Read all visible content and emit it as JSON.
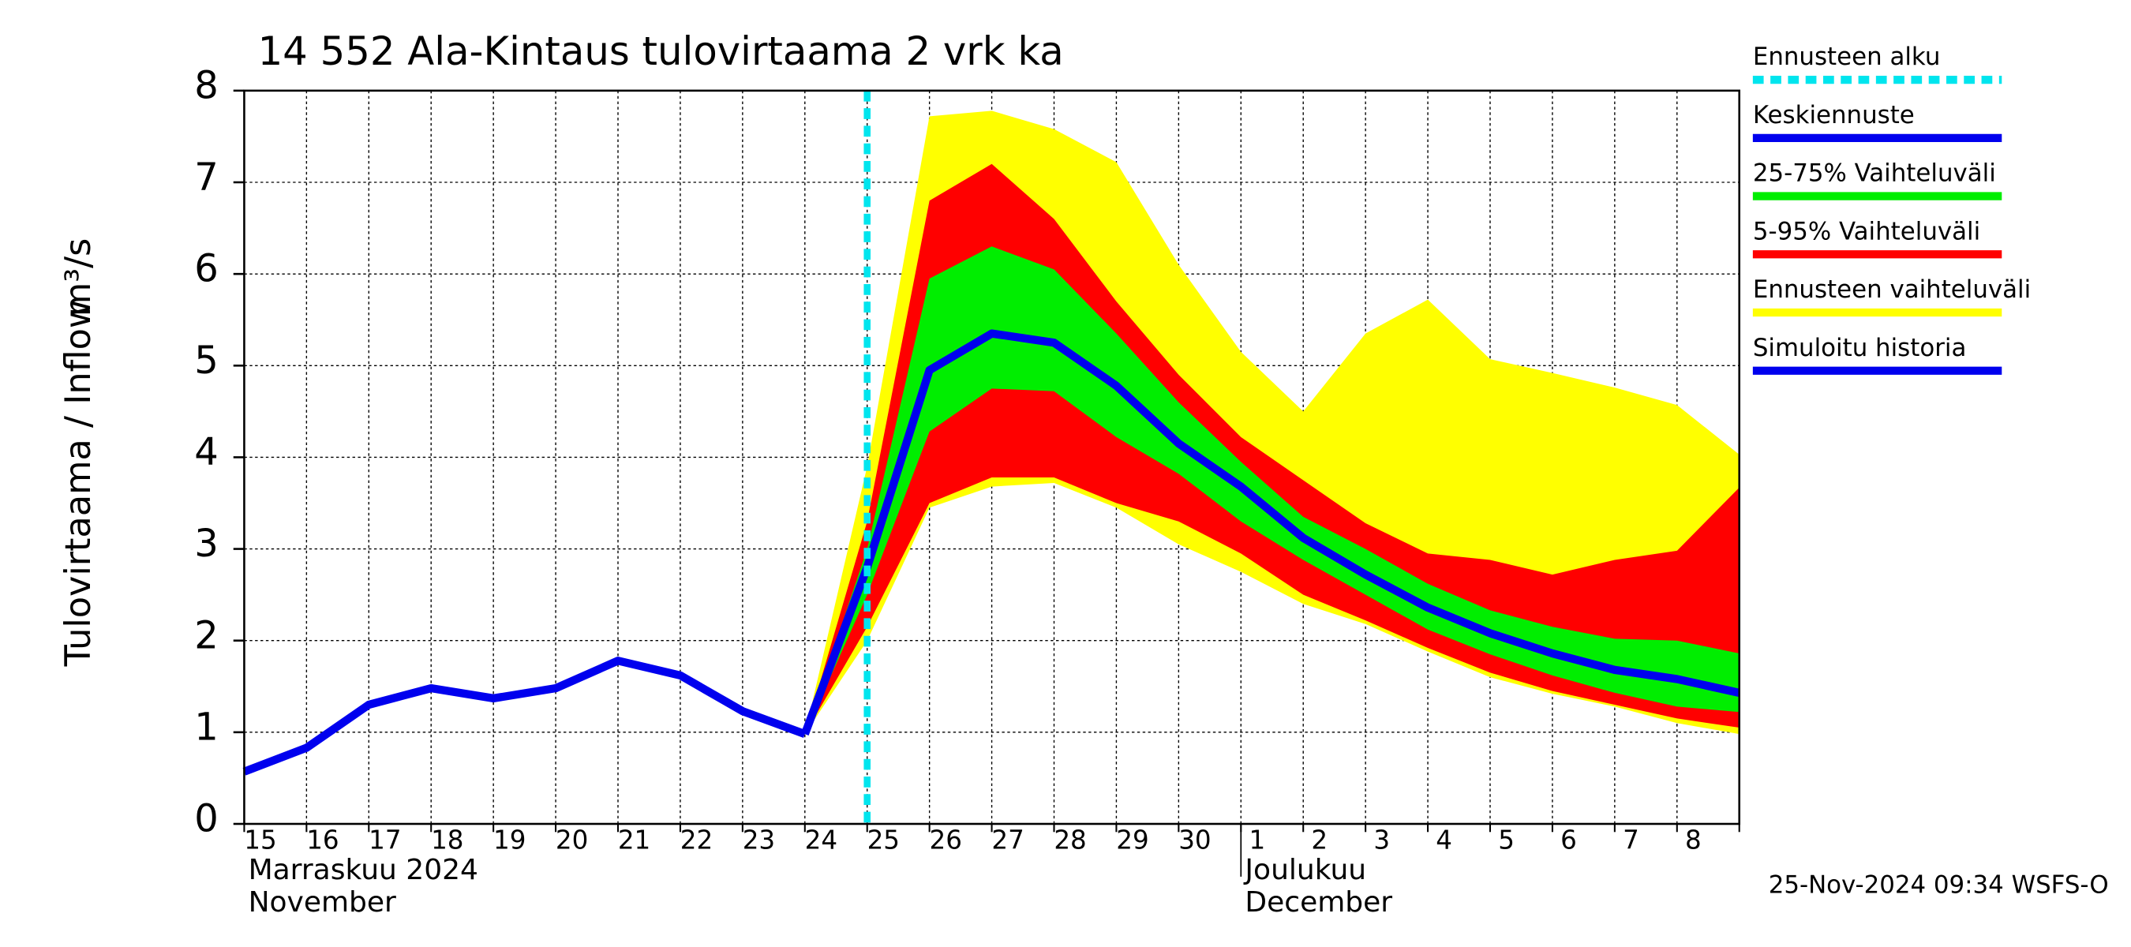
{
  "chart_data": {
    "type": "line",
    "title": "14 552 Ala-Kintaus tulovirtaama 2 vrk ka",
    "y_label": "Tulovirtaama / Inflow",
    "y_unit": "m³/s",
    "categories": [
      "15",
      "16",
      "17",
      "18",
      "19",
      "20",
      "21",
      "22",
      "23",
      "24",
      "25",
      "26",
      "27",
      "28",
      "29",
      "30",
      "1",
      "2",
      "3",
      "4",
      "5",
      "6",
      "7",
      "8",
      null
    ],
    "months": [
      {
        "label": "Marraskuu 2024",
        "label2": "November",
        "start": 0
      },
      {
        "label": "Joulukuu",
        "label2": "December",
        "start": 16
      }
    ],
    "ylim": [
      0,
      8
    ],
    "yticks": [
      0,
      1,
      2,
      3,
      4,
      5,
      6,
      7,
      8
    ],
    "grid": true,
    "forecast_start": 10,
    "bands": [
      {
        "name": "Ennusteen vaihteluväli",
        "color": "#ffff00",
        "upper": [
          null,
          null,
          null,
          null,
          null,
          null,
          null,
          null,
          null,
          0.98,
          3.9,
          7.72,
          7.78,
          7.58,
          7.22,
          6.1,
          5.15,
          4.5,
          5.35,
          5.72,
          5.07,
          4.92,
          4.76,
          4.57,
          4.03
        ],
        "lower": [
          null,
          null,
          null,
          null,
          null,
          null,
          null,
          null,
          null,
          0.98,
          2.0,
          3.45,
          3.68,
          3.72,
          3.45,
          3.05,
          2.75,
          2.4,
          2.18,
          1.88,
          1.6,
          1.42,
          1.28,
          1.1,
          0.98
        ]
      },
      {
        "name": "5-95% Vaihteluväli",
        "color": "#ff0000",
        "upper": [
          null,
          null,
          null,
          null,
          null,
          null,
          null,
          null,
          null,
          0.98,
          3.3,
          6.8,
          7.2,
          6.6,
          5.7,
          4.9,
          4.22,
          3.75,
          3.28,
          2.95,
          2.88,
          2.72,
          2.88,
          2.98,
          3.67
        ],
        "lower": [
          null,
          null,
          null,
          null,
          null,
          null,
          null,
          null,
          null,
          0.98,
          2.15,
          3.5,
          3.78,
          3.78,
          3.5,
          3.3,
          2.95,
          2.5,
          2.22,
          1.92,
          1.65,
          1.45,
          1.3,
          1.15,
          1.05
        ]
      },
      {
        "name": "25-75% Vaihteluväli",
        "color": "#00ee00",
        "upper": [
          null,
          null,
          null,
          null,
          null,
          null,
          null,
          null,
          null,
          0.98,
          3.0,
          5.95,
          6.3,
          6.05,
          5.35,
          4.6,
          3.95,
          3.35,
          3.0,
          2.62,
          2.33,
          2.15,
          2.02,
          2.0,
          1.86
        ],
        "lower": [
          null,
          null,
          null,
          null,
          null,
          null,
          null,
          null,
          null,
          0.98,
          2.5,
          4.28,
          4.75,
          4.72,
          4.22,
          3.82,
          3.3,
          2.88,
          2.5,
          2.12,
          1.85,
          1.62,
          1.43,
          1.28,
          1.22
        ]
      }
    ],
    "series": [
      {
        "name": "Keskiennuste",
        "color": "#0000ee",
        "values": [
          null,
          null,
          null,
          null,
          null,
          null,
          null,
          null,
          null,
          0.98,
          2.8,
          4.95,
          5.35,
          5.25,
          4.78,
          4.15,
          3.68,
          3.12,
          2.72,
          2.36,
          2.08,
          1.86,
          1.68,
          1.58,
          1.43
        ]
      },
      {
        "name": "Simuloitu historia",
        "color": "#0000ee",
        "values": [
          0.57,
          0.83,
          1.3,
          1.48,
          1.37,
          1.48,
          1.78,
          1.62,
          1.23,
          0.98,
          null,
          null,
          null,
          null,
          null,
          null,
          null,
          null,
          null,
          null,
          null,
          null,
          null,
          null,
          null
        ]
      }
    ],
    "legend": [
      {
        "name": "Ennusteen alku",
        "color": "#00e5ee"
      },
      {
        "name": "Keskiennuste",
        "color": "#0000ee"
      },
      {
        "name": "25-75% Vaihteluväli",
        "color": "#00ee00"
      },
      {
        "name": "5-95% Vaihteluväli",
        "color": "#ff0000"
      },
      {
        "name": "Ennusteen vaihteluväli",
        "color": "#ffff00"
      },
      {
        "name": "Simuloitu historia",
        "color": "#0000ee"
      }
    ],
    "footer": "25-Nov-2024 09:34 WSFS-O"
  }
}
